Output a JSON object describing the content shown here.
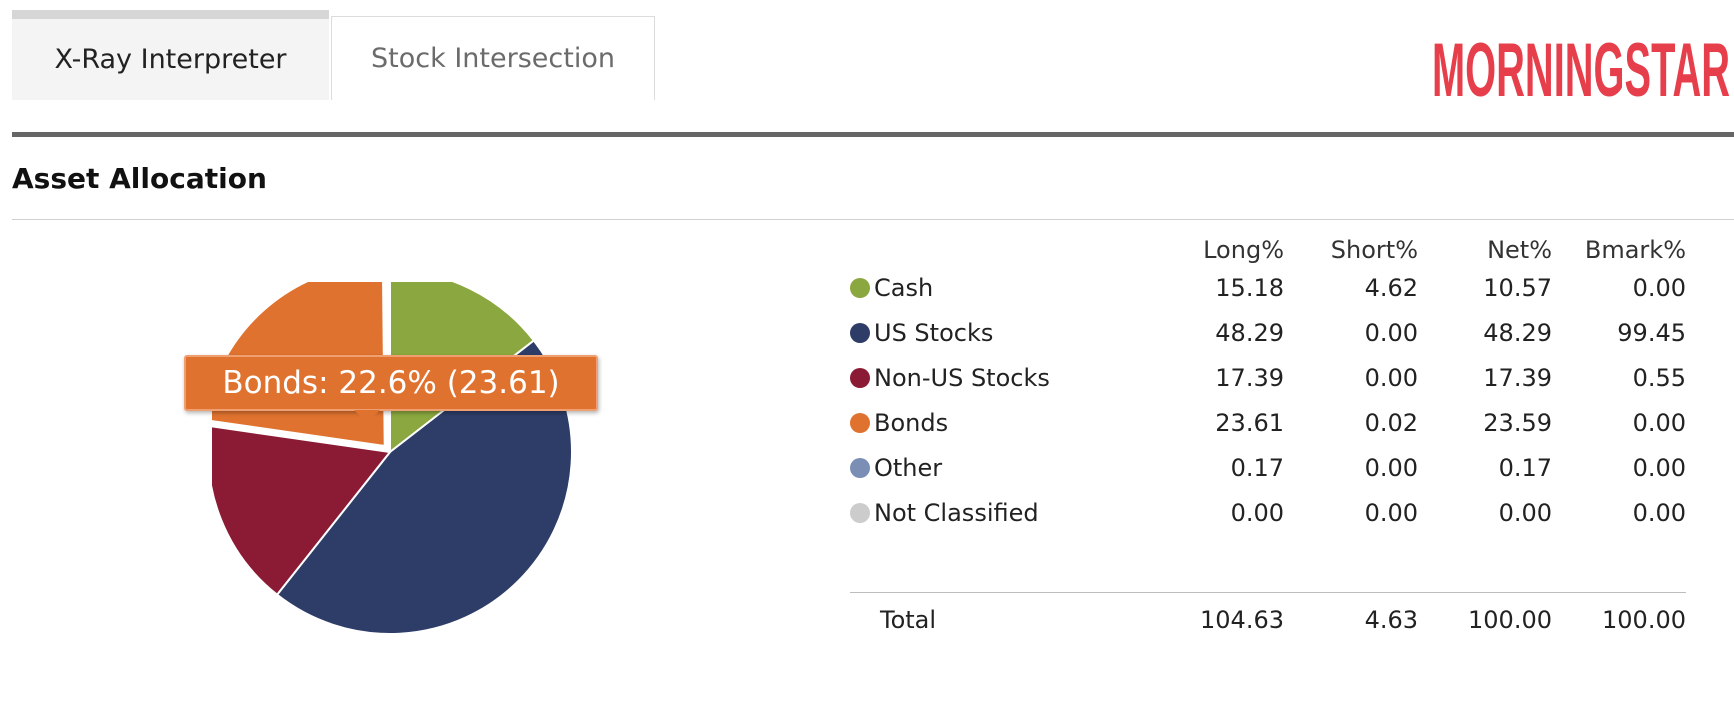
{
  "tabs": [
    {
      "label": "X-Ray Interpreter",
      "active": true
    },
    {
      "label": "Stock Intersection",
      "active": false
    }
  ],
  "logo": {
    "text": "MORNINGSTAR",
    "color": "#e63f4b"
  },
  "section": {
    "title": "Asset Allocation"
  },
  "tooltip": {
    "text": "Bonds: 22.6% (23.61)",
    "color": "#e0722f"
  },
  "table": {
    "headers": {
      "long": "Long%",
      "short": "Short%",
      "net": "Net%",
      "bmark": "Bmark%"
    },
    "rows": [
      {
        "label": "Cash",
        "color": "#8aa83f",
        "long": "15.18",
        "short": "4.62",
        "net": "10.57",
        "bmark": "0.00"
      },
      {
        "label": "US Stocks",
        "color": "#2e3d68",
        "long": "48.29",
        "short": "0.00",
        "net": "48.29",
        "bmark": "99.45"
      },
      {
        "label": "Non-US Stocks",
        "color": "#8b1b35",
        "long": "17.39",
        "short": "0.00",
        "net": "17.39",
        "bmark": "0.55"
      },
      {
        "label": "Bonds",
        "color": "#e0722f",
        "long": "23.61",
        "short": "0.02",
        "net": "23.59",
        "bmark": "0.00"
      },
      {
        "label": "Other",
        "color": "#7b8fb5",
        "long": "0.17",
        "short": "0.00",
        "net": "0.17",
        "bmark": "0.00"
      },
      {
        "label": "Not Classified",
        "color": "#cccccc",
        "long": "0.00",
        "short": "0.00",
        "net": "0.00",
        "bmark": "0.00"
      }
    ],
    "total": {
      "label": "Total",
      "long": "104.63",
      "short": "4.63",
      "net": "100.00",
      "bmark": "100.00"
    }
  },
  "chart_data": {
    "type": "pie",
    "categories": [
      "Cash",
      "US Stocks",
      "Non-US Stocks",
      "Bonds",
      "Other",
      "Not Classified"
    ],
    "values": [
      15.18,
      48.29,
      17.39,
      23.61,
      0.17,
      0.0
    ],
    "colors": [
      "#8aa83f",
      "#2e3d68",
      "#8b1b35",
      "#e0722f",
      "#7b8fb5",
      "#cccccc"
    ],
    "highlighted": "Bonds"
  }
}
